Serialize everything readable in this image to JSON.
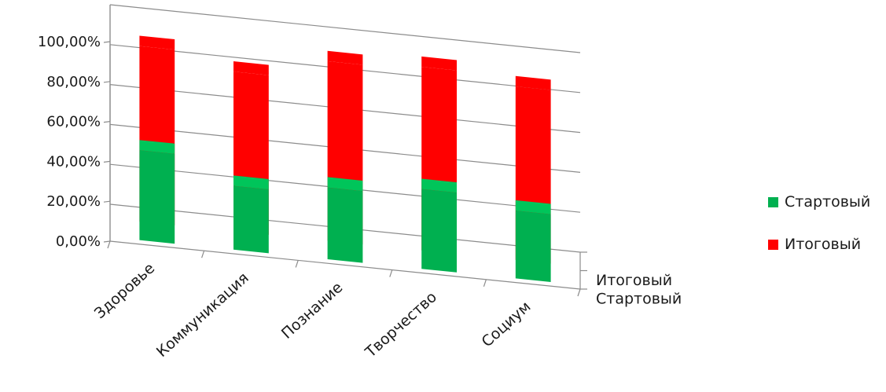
{
  "chart_data": {
    "type": "bar",
    "categories": [
      "Здоровье",
      "Коммуникация",
      "Познание",
      "Творчество",
      "Социум"
    ],
    "series": [
      {
        "name": "Стартовый",
        "values": [
          45,
          32,
          36,
          40,
          34
        ],
        "color": "#00b050"
      },
      {
        "name": "Итоговый",
        "values": [
          88,
          80,
          90,
          92,
          87
        ],
        "color": "#ff0000"
      }
    ],
    "depth_labels": [
      "Итоговый",
      "Стартовый"
    ],
    "y_tick_labels": [
      "0,00%",
      "20,00%",
      "40,00%",
      "60,00%",
      "80,00%",
      "100,00%"
    ],
    "ylim": [
      0,
      100
    ],
    "grid": true,
    "legend_position": "right"
  }
}
